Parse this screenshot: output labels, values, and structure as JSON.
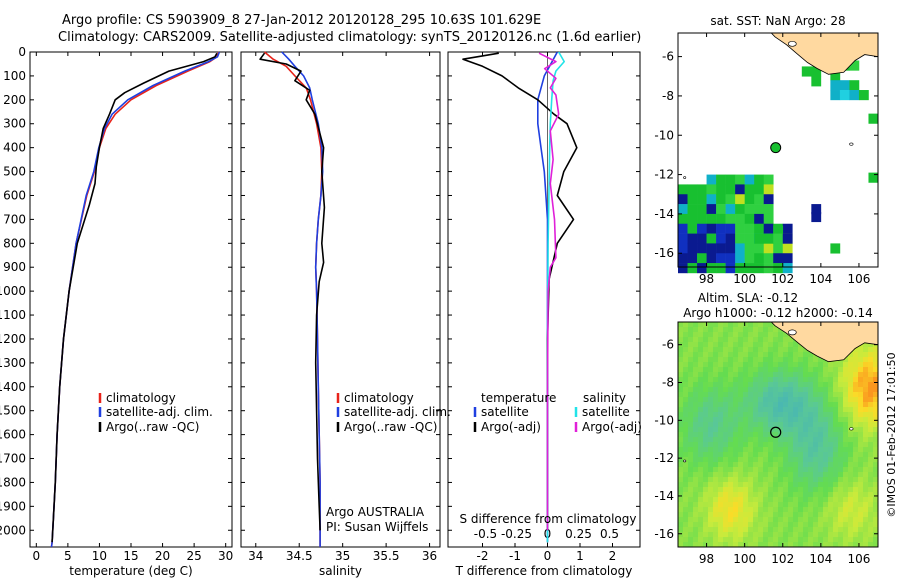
{
  "header": {
    "line1": "Argo profile: CS 5903909_8 27-Jan-2012 20120128_295 10.63S 101.629E",
    "line2": "Climatology: CARS2009. Satellite-adjusted climatology: synTS_20120126.nc (1.6d earlier)"
  },
  "colors": {
    "climatology": "#e8231a",
    "satellite_clim": "#1f3fe0",
    "argo": "#000000",
    "salinity_satellite": "#22e3e8",
    "salinity_argo": "#e020d8"
  },
  "chart_data": [
    {
      "id": "temperature",
      "type": "line",
      "xlabel": "temperature (deg C)",
      "ylabel": "",
      "xlim": [
        -1,
        31
      ],
      "ylim": [
        2070,
        0
      ],
      "xticks": [
        0,
        5,
        10,
        15,
        20,
        25,
        30
      ],
      "yticks": [
        0,
        100,
        200,
        300,
        400,
        500,
        600,
        700,
        800,
        900,
        1000,
        1100,
        1200,
        1300,
        1400,
        1500,
        1600,
        1700,
        1800,
        1900,
        2000
      ],
      "legend": {
        "position": "lower-middle",
        "entries": [
          "climatology",
          "satellite-adj. clim.",
          "Argo(..raw -QC)"
        ]
      },
      "series": [
        {
          "name": "climatology",
          "color": "#e8231a",
          "x": [
            28.9,
            28.6,
            27.5,
            24,
            19,
            15,
            12.5,
            11,
            10,
            9.2,
            8,
            6.3,
            5.2,
            4.3,
            3.7,
            3.3,
            3.0,
            2.7,
            2.5,
            2.4
          ],
          "y": [
            0,
            20,
            40,
            80,
            140,
            200,
            260,
            320,
            400,
            500,
            600,
            800,
            1000,
            1200,
            1400,
            1600,
            1800,
            1950,
            2050,
            2070
          ]
        },
        {
          "name": "satellite-adj. clim.",
          "color": "#1f3fe0",
          "x": [
            29.0,
            28.7,
            27.3,
            23.5,
            18.5,
            14.5,
            12.0,
            10.8,
            9.9,
            9.1,
            7.9,
            6.3,
            5.2,
            4.3,
            3.7,
            3.3,
            3.0,
            2.7,
            2.5,
            2.4
          ],
          "y": [
            0,
            20,
            40,
            80,
            140,
            200,
            260,
            320,
            400,
            500,
            600,
            800,
            1000,
            1200,
            1400,
            1600,
            1800,
            1950,
            2050,
            2070
          ]
        },
        {
          "name": "Argo(..raw -QC)",
          "color": "#000000",
          "x": [
            28.6,
            28.3,
            26.5,
            21,
            17,
            14,
            12.5,
            11.6,
            10.6,
            10,
            9.5,
            9.3,
            8.4,
            6.5,
            5.2,
            4.3,
            3.7,
            3.3,
            3.0,
            2.7,
            2.5
          ],
          "y": [
            5,
            20,
            40,
            80,
            130,
            170,
            200,
            260,
            320,
            400,
            480,
            550,
            640,
            800,
            1000,
            1200,
            1400,
            1600,
            1800,
            1950,
            2050
          ]
        }
      ]
    },
    {
      "id": "salinity",
      "type": "line",
      "xlabel": "salinity",
      "ylabel": "",
      "xlim": [
        33.83,
        36.12
      ],
      "ylim": [
        2070,
        0
      ],
      "xticks": [
        34,
        34.5,
        35,
        35.5,
        36
      ],
      "legend": {
        "position": "lower-middle",
        "entries": [
          "climatology",
          "satellite-adj. clim.",
          "Argo(..raw -QC)"
        ]
      },
      "annotations": [
        "Argo AUSTRALIA",
        "PI: Susan Wijffels"
      ],
      "series": [
        {
          "name": "climatology",
          "color": "#e8231a",
          "x": [
            34.1,
            34.2,
            34.35,
            34.45,
            34.58,
            34.63,
            34.7,
            34.75,
            34.76,
            34.75,
            34.72,
            34.7,
            34.69,
            34.7,
            34.71,
            34.72,
            34.73,
            34.74,
            34.74,
            34.74
          ],
          "y": [
            0,
            30,
            60,
            100,
            150,
            200,
            300,
            400,
            500,
            600,
            700,
            800,
            900,
            1000,
            1200,
            1400,
            1600,
            1800,
            2000,
            2070
          ]
        },
        {
          "name": "satellite-adj. clim.",
          "color": "#1f3fe0",
          "x": [
            34.3,
            34.38,
            34.45,
            34.55,
            34.62,
            34.65,
            34.72,
            34.76,
            34.77,
            34.75,
            34.72,
            34.7,
            34.69,
            34.7,
            34.71,
            34.72,
            34.73,
            34.74,
            34.74,
            34.74
          ],
          "y": [
            0,
            30,
            60,
            100,
            150,
            200,
            300,
            400,
            500,
            600,
            700,
            800,
            900,
            1000,
            1200,
            1400,
            1600,
            1800,
            2000,
            2070
          ]
        },
        {
          "name": "Argo(..raw -QC)",
          "color": "#000000",
          "x": [
            34.1,
            34.05,
            34.35,
            34.52,
            34.45,
            34.62,
            34.58,
            34.68,
            34.78,
            34.76,
            34.79,
            34.76,
            34.78,
            34.73,
            34.7,
            34.69,
            34.7,
            34.71,
            34.73,
            34.74
          ],
          "y": [
            5,
            30,
            50,
            80,
            120,
            160,
            200,
            260,
            400,
            500,
            650,
            800,
            880,
            960,
            1100,
            1300,
            1500,
            1700,
            1900,
            2000
          ]
        }
      ]
    },
    {
      "id": "difference",
      "type": "line",
      "xlabel": "T difference from climatology",
      "xlabel_top": "S difference from climatology",
      "xlim": [
        -2.6,
        3.0
      ],
      "ylim": [
        2070,
        0
      ],
      "xticks": [
        -2,
        -1,
        0,
        1,
        2
      ],
      "xticks_labels": [
        "-2",
        "-1",
        "0",
        "1",
        "2"
      ],
      "sticks": [
        -0.5,
        -0.25,
        0,
        0.25,
        0.5
      ],
      "sticks_labels": [
        "-0.5",
        "-0.25",
        "0",
        "0.25",
        "0.5"
      ],
      "legend": {
        "position": "lower-middle",
        "temperature_header": "temperature",
        "salinity_header": "salinity",
        "temperature_entries": [
          "satellite",
          "Argo(-adj)"
        ],
        "salinity_entries": [
          "satellite",
          "Argo(-adj)"
        ]
      },
      "series": [
        {
          "name": "temperature satellite",
          "color": "#1f3fe0",
          "x": [
            0.3,
            0.1,
            -0.1,
            -0.3,
            -0.3,
            -0.2,
            -0.1,
            0,
            0,
            0,
            0,
            0,
            0
          ],
          "y": [
            0,
            50,
            100,
            200,
            300,
            400,
            500,
            700,
            900,
            1200,
            1500,
            1800,
            2050
          ]
        },
        {
          "name": "temperature Argo(-adj)",
          "color": "#000000",
          "x": [
            -1.5,
            -2.6,
            -2.0,
            -1.4,
            -0.9,
            -0.3,
            0.2,
            0.6,
            0.9,
            0.5,
            0.3,
            0.8,
            0.3,
            0.05,
            0.0,
            0.0,
            0.0
          ],
          "y": [
            5,
            30,
            60,
            100,
            150,
            200,
            260,
            300,
            400,
            500,
            600,
            700,
            800,
            950,
            1200,
            1600,
            2000
          ]
        },
        {
          "name": "salinity satellite",
          "color": "#22e3e8",
          "x": [
            0.4,
            0.6,
            0.3,
            0.2,
            0.15,
            0.1,
            0.08,
            0.05,
            0.02,
            0.01,
            0.0,
            0.0,
            0.0
          ],
          "y": [
            0,
            40,
            80,
            120,
            200,
            300,
            400,
            600,
            800,
            1000,
            1400,
            1800,
            2050
          ]
        },
        {
          "name": "salinity Argo(-adj)",
          "color": "#e020d8",
          "x": [
            -0.3,
            0.3,
            -0.1,
            0.3,
            0.1,
            0.3,
            0.4,
            0.1,
            0.2,
            0.1,
            0.25,
            0.3,
            0.1,
            0.02,
            0.0,
            0.0
          ],
          "y": [
            5,
            40,
            70,
            110,
            150,
            180,
            260,
            330,
            450,
            550,
            700,
            860,
            900,
            1000,
            1400,
            2000
          ]
        }
      ]
    },
    {
      "id": "sst-map",
      "type": "heatmap",
      "title": "sat. SST: NaN Argo: 28",
      "xticks": [
        98,
        100,
        102,
        104,
        106
      ],
      "yticks": [
        -6,
        -8,
        -10,
        -12,
        -14,
        -16
      ],
      "xlim": [
        96.5,
        107
      ],
      "ylim": [
        -16.7,
        -4.8
      ],
      "float_position": {
        "lon": 101.629,
        "lat": -10.63
      }
    },
    {
      "id": "sla-map",
      "type": "heatmap",
      "title_line1": "Altim. SLA: -0.12",
      "title_line2": "Argo h1000: -0.12 h2000: -0.14",
      "xticks": [
        98,
        100,
        102,
        104,
        106
      ],
      "yticks": [
        -6,
        -8,
        -10,
        -12,
        -14,
        -16
      ],
      "xlim": [
        96.5,
        107
      ],
      "ylim": [
        -16.7,
        -4.8
      ],
      "float_position": {
        "lon": 101.629,
        "lat": -10.63
      },
      "side_label": "©IMOS 01-Feb-2012 17:01:50"
    }
  ]
}
